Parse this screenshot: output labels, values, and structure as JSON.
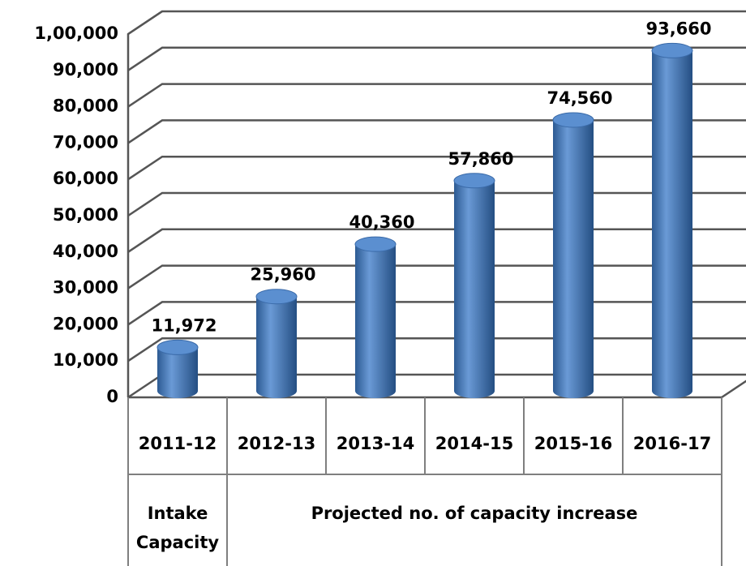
{
  "chart_data": {
    "type": "bar",
    "categories": [
      "2011-12",
      "2012-13",
      "2013-14",
      "2014-15",
      "2015-16",
      "2016-17"
    ],
    "values": [
      11972,
      25960,
      40360,
      57860,
      74560,
      93660
    ],
    "value_labels": [
      "11,972",
      "25,960",
      "40,360",
      "57,860",
      "74,560",
      "93,660"
    ],
    "color": "#4f81bd",
    "ylim": [
      0,
      100000
    ],
    "yticks": [
      0,
      {
        "value": 10000,
        "label": "10,000"
      },
      {
        "value": 20000,
        "label": "20,000"
      },
      {
        "value": 30000,
        "label": "30,000"
      },
      {
        "value": 40000,
        "label": "40,000"
      },
      {
        "value": 50000,
        "label": "50,000"
      },
      {
        "value": 60000,
        "label": "60,000"
      },
      {
        "value": 70000,
        "label": "70,000"
      },
      {
        "value": 80000,
        "label": "80,000"
      },
      {
        "value": 90000,
        "label": "90,000"
      },
      {
        "value": 100000,
        "label": "1,00,000"
      }
    ],
    "grid": true,
    "groups": [
      {
        "label": "Intake Capacity",
        "count": 1
      },
      {
        "label": "Projected no. of capacity increase",
        "count": 5
      }
    ]
  }
}
